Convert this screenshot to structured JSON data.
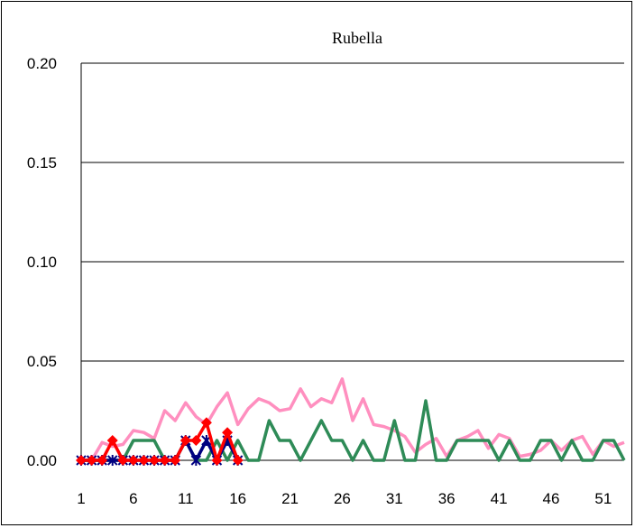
{
  "chart_data": {
    "type": "line",
    "title": "Rubella",
    "xlabel": "",
    "ylabel": "",
    "ylim": [
      0,
      0.2
    ],
    "xlim": [
      1,
      53
    ],
    "y_ticks": [
      "0.00",
      "0.05",
      "0.10",
      "0.15",
      "0.20"
    ],
    "x_ticks": [
      "1",
      "6",
      "11",
      "16",
      "21",
      "26",
      "31",
      "36",
      "41",
      "46",
      "51"
    ],
    "grid": "horizontal",
    "legend": "none",
    "series": [
      {
        "color": "#ff8fbf",
        "marker": "none",
        "x": [
          1,
          2,
          3,
          4,
          5,
          6,
          7,
          8,
          9,
          10,
          11,
          12,
          13,
          14,
          15,
          16,
          17,
          18,
          19,
          20,
          21,
          22,
          23,
          24,
          25,
          26,
          27,
          28,
          29,
          30,
          31,
          32,
          33,
          34,
          35,
          36,
          37,
          38,
          39,
          40,
          41,
          42,
          43,
          44,
          45,
          46,
          47,
          48,
          49,
          50,
          51,
          52,
          53
        ],
        "values": [
          0,
          0,
          0.009,
          0.007,
          0.008,
          0.015,
          0.014,
          0.011,
          0.025,
          0.02,
          0.029,
          0.022,
          0.018,
          0.027,
          0.034,
          0.018,
          0.026,
          0.031,
          0.029,
          0.025,
          0.026,
          0.036,
          0.027,
          0.031,
          0.029,
          0.041,
          0.02,
          0.031,
          0.018,
          0.017,
          0.015,
          0.012,
          0.004,
          0.008,
          0.011,
          0.002,
          0.01,
          0.012,
          0.015,
          0.006,
          0.013,
          0.011,
          0.002,
          0.003,
          0.005,
          0.01,
          0.005,
          0.01,
          0.012,
          0.003,
          0.01,
          0.007,
          0.009
        ]
      },
      {
        "color": "#2e8b57",
        "marker": "none",
        "x": [
          1,
          2,
          3,
          4,
          5,
          6,
          7,
          8,
          9,
          10,
          11,
          12,
          13,
          14,
          15,
          16,
          17,
          18,
          19,
          20,
          21,
          22,
          23,
          24,
          25,
          26,
          27,
          28,
          29,
          30,
          31,
          32,
          33,
          34,
          35,
          36,
          37,
          38,
          39,
          40,
          41,
          42,
          43,
          44,
          45,
          46,
          47,
          48,
          49,
          50,
          51,
          52,
          53
        ],
        "values": [
          0,
          0,
          0,
          0,
          0,
          0.01,
          0.01,
          0.01,
          0,
          0,
          0.01,
          0,
          0,
          0.01,
          0,
          0.01,
          0,
          0,
          0.02,
          0.01,
          0.01,
          0,
          0.01,
          0.02,
          0.01,
          0.01,
          0,
          0.01,
          0,
          0,
          0.02,
          0,
          0,
          0.03,
          0,
          0,
          0.01,
          0.01,
          0.01,
          0.01,
          0,
          0.01,
          0,
          0,
          0.01,
          0.01,
          0,
          0.01,
          0,
          0,
          0.01,
          0.01,
          0
        ]
      },
      {
        "color": "#000080",
        "marker": "asterisk",
        "x": [
          1,
          2,
          3,
          4,
          5,
          6,
          7,
          8,
          9,
          10,
          11,
          12,
          13,
          14,
          15,
          16
        ],
        "values": [
          0,
          0,
          0,
          0,
          0,
          0,
          0,
          0,
          0,
          0,
          0.01,
          0,
          0.01,
          0,
          0.01,
          0
        ]
      },
      {
        "color": "#ff0000",
        "marker": "diamond",
        "x": [
          1,
          2,
          3,
          4,
          5,
          6,
          7,
          8,
          9,
          10,
          11,
          12,
          13,
          14,
          15,
          16
        ],
        "values": [
          0,
          0,
          0,
          0.01,
          0,
          0,
          0,
          0,
          0,
          0,
          0.01,
          0.01,
          0.019,
          0,
          0.014,
          0
        ]
      }
    ]
  }
}
